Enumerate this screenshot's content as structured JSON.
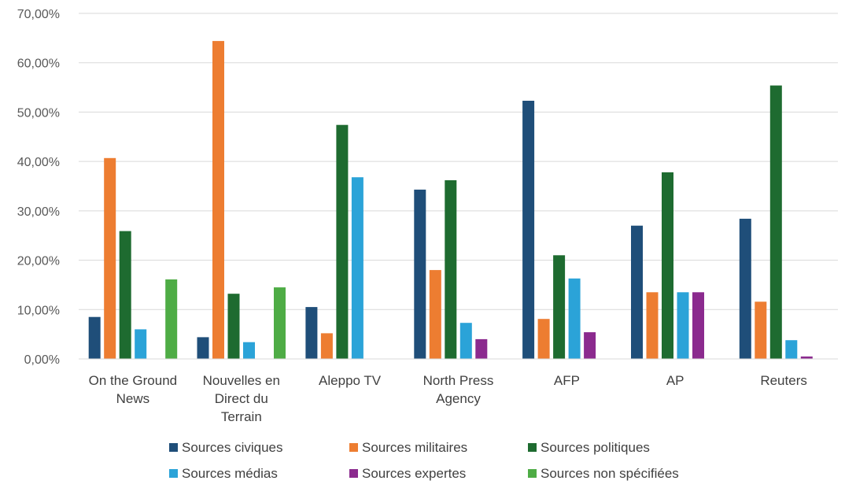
{
  "chart_data": {
    "type": "bar",
    "categories": [
      [
        "On the Ground",
        "News"
      ],
      [
        "Nouvelles en",
        "Direct du",
        "Terrain"
      ],
      [
        "Aleppo TV"
      ],
      [
        "North Press",
        "Agency"
      ],
      [
        "AFP"
      ],
      [
        "AP"
      ],
      [
        "Reuters"
      ]
    ],
    "series": [
      {
        "name": "Sources civiques",
        "color": "#1f4e79",
        "values": [
          8.5,
          4.4,
          10.5,
          34.3,
          52.3,
          27.0,
          28.4
        ]
      },
      {
        "name": "Sources militaires",
        "color": "#ed7d31",
        "values": [
          40.7,
          64.4,
          5.2,
          18.0,
          8.1,
          13.5,
          11.6
        ]
      },
      {
        "name": "Sources politiques",
        "color": "#1e6b30",
        "values": [
          25.9,
          13.2,
          47.4,
          36.2,
          21.0,
          37.8,
          55.4
        ]
      },
      {
        "name": "Sources médias",
        "color": "#2ba3d8",
        "values": [
          6.0,
          3.4,
          36.8,
          7.3,
          16.3,
          13.5,
          3.8
        ]
      },
      {
        "name": "Sources expertes",
        "color": "#8b2a8e",
        "values": [
          0,
          0,
          0,
          4.0,
          5.4,
          13.5,
          0.5
        ]
      },
      {
        "name": "Sources non spécifiées",
        "color": "#4eac45",
        "values": [
          16.1,
          14.5,
          0,
          0,
          0,
          0,
          0
        ]
      }
    ],
    "ylim": [
      0,
      70
    ],
    "yticks": [
      "0,00%",
      "10,00%",
      "20,00%",
      "30,00%",
      "40,00%",
      "50,00%",
      "60,00%",
      "70,00%"
    ],
    "grid": true,
    "legend_position": "bottom",
    "title": "",
    "xlabel": "",
    "ylabel": ""
  }
}
